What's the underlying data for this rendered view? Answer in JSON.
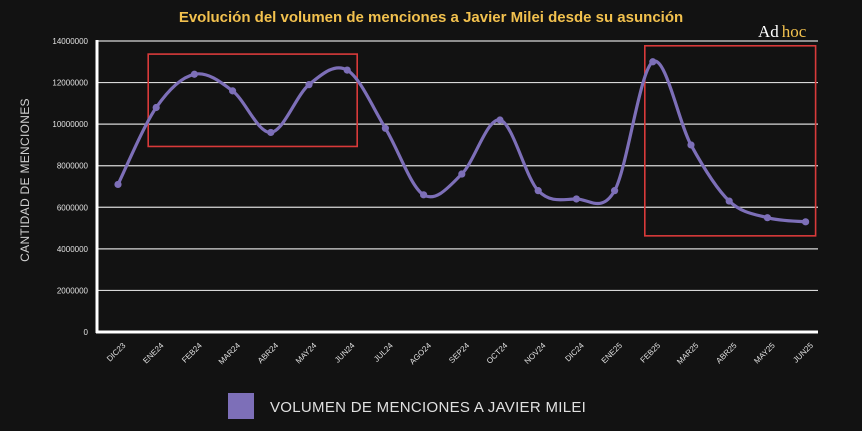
{
  "chart_data": {
    "type": "line",
    "title": "Evolución del volumen de menciones a Javier Milei desde su asunción",
    "ylabel": "CANTIDAD DE MENCIONES",
    "xlabel": "",
    "ylim": [
      0,
      14000000
    ],
    "yticks": [
      "0",
      "2000000",
      "4000000",
      "6000000",
      "8000000",
      "10000000",
      "12000000",
      "14000000"
    ],
    "grid": true,
    "legend_position": "bottom-center",
    "categories": [
      "DIC23",
      "ENE24",
      "FEB24",
      "MAR24",
      "ABR24",
      "MAY24",
      "JUN24",
      "JUL24",
      "AGO24",
      "SEP24",
      "OCT24",
      "NOV24",
      "DIC24",
      "ENE25",
      "FEB25",
      "MAR25",
      "ABR25",
      "MAY25",
      "JUN25"
    ],
    "series": [
      {
        "name": "VOLUMEN DE MENCIONES A JAVIER MILEI",
        "color": "#7d6fb8",
        "values": [
          7100000,
          10800000,
          12400000,
          11600000,
          9600000,
          11900000,
          12600000,
          9800000,
          6600000,
          7600000,
          10200000,
          6800000,
          6400000,
          6800000,
          13000000,
          9000000,
          6300000,
          5500000,
          5300000
        ]
      }
    ],
    "highlights": [
      {
        "from": "ENE24",
        "to": "JUN24",
        "color": "#d93a3a"
      },
      {
        "from": "FEB25",
        "to": "JUN25",
        "color": "#d93a3a"
      }
    ]
  },
  "logo": {
    "text_a": "Ad",
    "text_b": "hoc"
  },
  "colors": {
    "title": "#f2c14e",
    "background": "#121212",
    "grid": "#d8d8d8",
    "axis": "#ffffff"
  }
}
